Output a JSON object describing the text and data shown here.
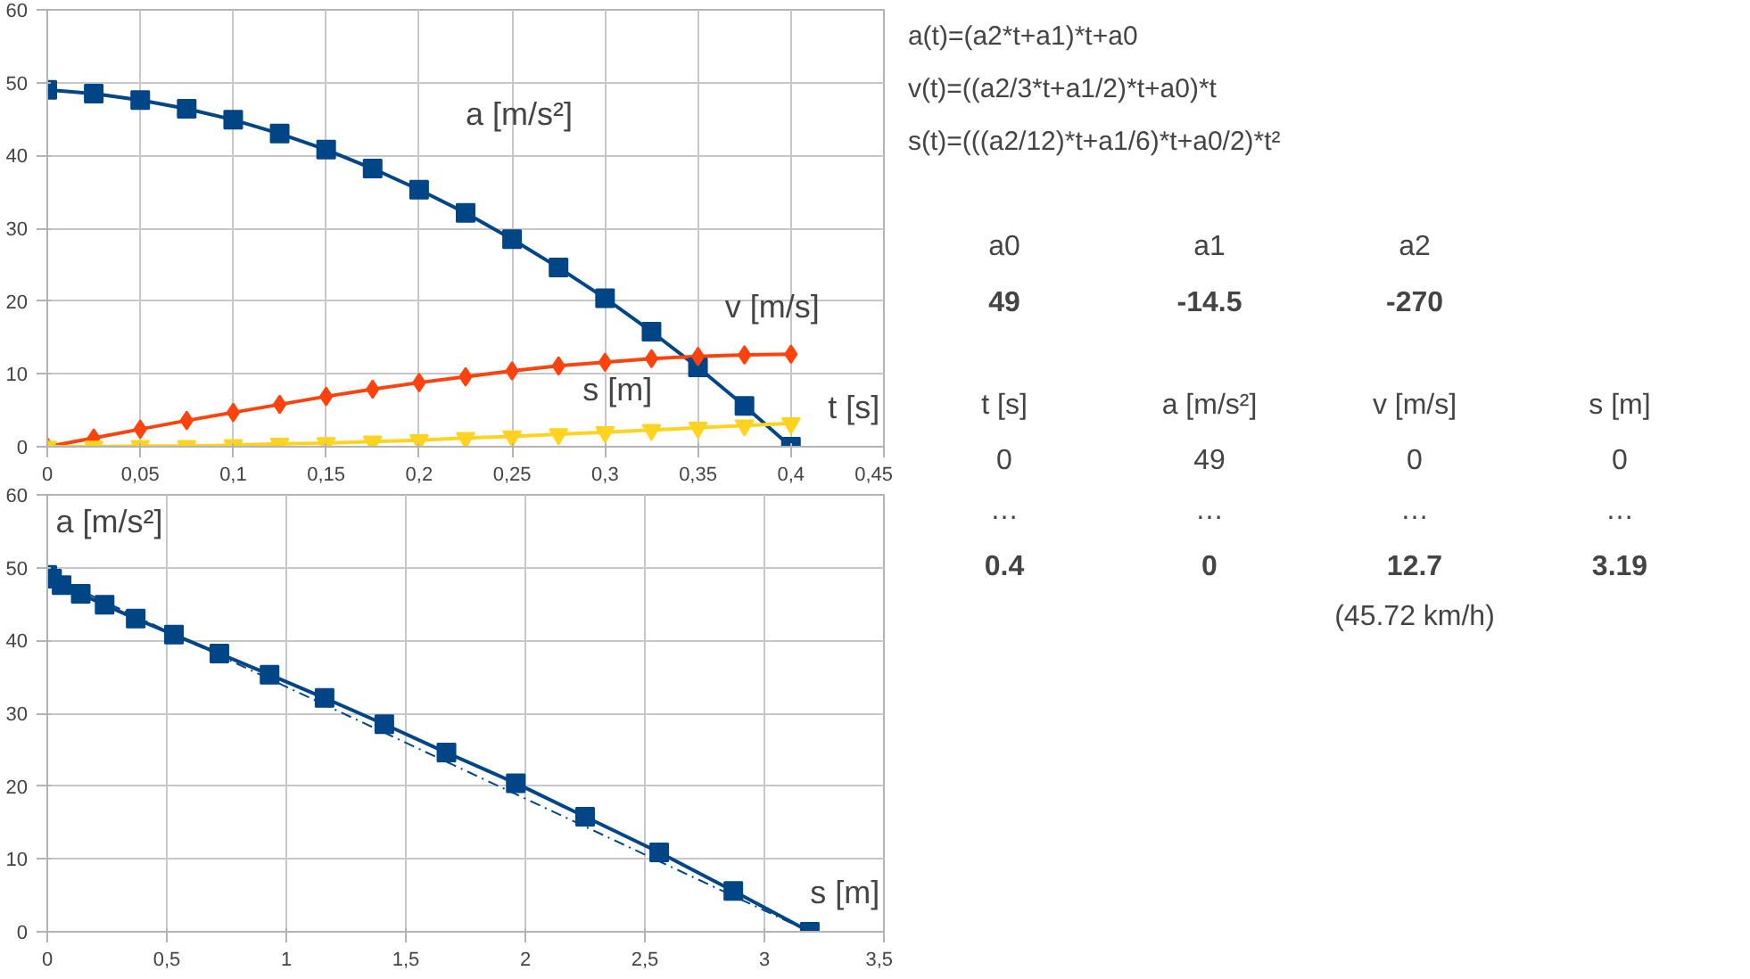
{
  "chart_data": [
    {
      "type": "line",
      "xlabel": "t [s]",
      "xlim": [
        0,
        0.45
      ],
      "ylim": [
        0,
        60
      ],
      "xticks": [
        0,
        {
          "value": 0.05,
          "label": "0,05"
        },
        {
          "value": 0.1,
          "label": "0,1"
        },
        {
          "value": 0.15,
          "label": "0,15"
        },
        {
          "value": 0.2,
          "label": "0,2"
        },
        {
          "value": 0.25,
          "label": "0,25"
        },
        {
          "value": 0.3,
          "label": "0,3"
        },
        {
          "value": 0.35,
          "label": "0,35"
        },
        {
          "value": 0.4,
          "label": "0,4"
        },
        {
          "value": 0.45,
          "label": "0,45"
        }
      ],
      "yticks": [
        0,
        10,
        20,
        30,
        40,
        50,
        60
      ],
      "grid": true,
      "line_style": "solid",
      "x": [
        0,
        0.025,
        0.05,
        0.075,
        0.1,
        0.125,
        0.15,
        0.175,
        0.2,
        0.225,
        0.25,
        0.275,
        0.3,
        0.325,
        0.35,
        0.375,
        0.4
      ],
      "series": [
        {
          "color": "#004586",
          "marker": "square",
          "values": [
            49,
            48.5,
            47.6,
            46.4,
            44.9,
            43,
            40.8,
            38.2,
            35.3,
            32.1,
            28.5,
            24.6,
            20.4,
            15.8,
            10.9,
            5.6,
            0
          ]
        },
        {
          "color": "#ff420e",
          "marker": "diamond",
          "values": [
            0,
            1.2,
            2.4,
            3.6,
            4.7,
            5.8,
            6.9,
            7.9,
            8.8,
            9.6,
            10.4,
            11.1,
            11.6,
            12.1,
            12.4,
            12.6,
            12.7
          ]
        },
        {
          "color": "#ffd320",
          "marker": "triangle",
          "values": [
            0,
            0,
            0.1,
            0.1,
            0.2,
            0.4,
            0.5,
            0.7,
            0.9,
            1.2,
            1.4,
            1.7,
            2,
            2.3,
            2.6,
            2.9,
            3.2
          ]
        }
      ],
      "annotations": [
        "a [m/s²]",
        "v [m/s]",
        "s [m]"
      ]
    },
    {
      "type": "line",
      "xlabel": "s [m]",
      "ylabel": "a [m/s²]",
      "xlim": [
        0,
        3.5
      ],
      "ylim": [
        0,
        60
      ],
      "xticks": [
        0,
        {
          "value": 0.5,
          "label": "0,5"
        },
        1,
        {
          "value": 1.5,
          "label": "1,5"
        },
        2,
        {
          "value": 2.5,
          "label": "2,5"
        },
        3,
        {
          "value": 3.5,
          "label": "3,5"
        }
      ],
      "yticks": [
        0,
        10,
        20,
        30,
        40,
        50,
        60
      ],
      "grid": true,
      "series": [
        {
          "color": "#004586",
          "marker": "square",
          "line_style": "solid",
          "x": [
            0,
            0.02,
            0.06,
            0.14,
            0.24,
            0.37,
            0.53,
            0.72,
            0.93,
            1.16,
            1.41,
            1.67,
            1.96,
            2.25,
            2.56,
            2.87,
            3.19
          ],
          "values": [
            49,
            48.5,
            47.6,
            46.4,
            44.9,
            43,
            40.8,
            38.2,
            35.3,
            32.1,
            28.5,
            24.6,
            20.4,
            15.8,
            10.9,
            5.6,
            0
          ]
        },
        {
          "color": "#004586",
          "marker": "none",
          "line_style": "dashed",
          "x": [
            0,
            3.19
          ],
          "values": [
            49,
            0
          ]
        }
      ]
    },
    {
      "type": "other",
      "annotations": [
        "a(t)=(a2*t+a1)*t+a0",
        "v(t)=((a2/3*t+a1/2)*t+a0)*t",
        "s(t)=(((a2/12)*t+a1/6)*t+a0/2)*t²"
      ],
      "cell_labels": [
        [
          null,
          null,
          null,
          null
        ],
        [
          "a0",
          "a1",
          "a2",
          null
        ],
        [
          "49",
          "-14.5",
          "-270",
          null
        ],
        [
          null,
          null,
          null,
          null
        ],
        [
          "t [s]",
          "a [m/s²]",
          "v [m/s]",
          "s [m]"
        ],
        [
          "0",
          "49",
          "0",
          "0"
        ],
        [
          "…",
          "…",
          "…",
          "…"
        ],
        [
          "0.4",
          "0",
          "12.7",
          "3.19"
        ],
        [
          null,
          null,
          "(45.72 km/h)",
          null
        ]
      ]
    }
  ]
}
